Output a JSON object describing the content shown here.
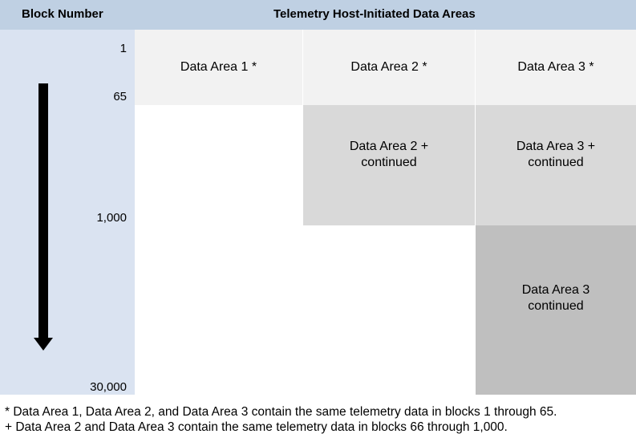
{
  "header": {
    "block_number": "Block Number",
    "title": "Telemetry Host-Initiated Data Areas"
  },
  "axis": {
    "ticks": [
      "1",
      "65",
      "1,000",
      "30,000"
    ]
  },
  "cells": {
    "area1": "Data Area 1 *",
    "area2": "Data Area 2 *",
    "area3": "Data Area 3 *",
    "area2_cont_l1": "Data Area 2 +",
    "area2_cont_l2": "continued",
    "area3_cont_l1": "Data Area 3 +",
    "area3_cont_l2": "continued",
    "area3_final_l1": "Data Area 3",
    "area3_final_l2": "continued"
  },
  "footnotes": [
    "* Data Area 1, Data Area 2, and Data Area 3 contain the same telemetry data in blocks 1 through 65.",
    "+ Data Area 2 and Data Area 3 contain the same telemetry data in blocks 66 through 1,000."
  ],
  "colors": {
    "header": "#bfd0e3",
    "left_column": "#dae3f1",
    "row1": "#f2f2f2",
    "row2": "#d9d9d9",
    "row3": "#bfbfbf"
  }
}
